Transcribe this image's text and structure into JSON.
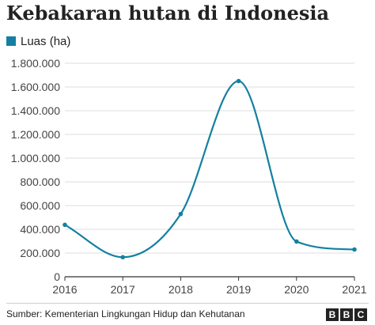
{
  "chart_data": {
    "type": "line",
    "title": "Kebakaran hutan di Indonesia",
    "categories": [
      "2016",
      "2017",
      "2018",
      "2019",
      "2020",
      "2021"
    ],
    "series": [
      {
        "name": "Luas (ha)",
        "values": [
          438000,
          165000,
          529000,
          1650000,
          297000,
          230000
        ]
      }
    ],
    "y_ticks": [
      0,
      200000,
      400000,
      600000,
      800000,
      1000000,
      1200000,
      1400000,
      1600000,
      1800000
    ],
    "y_tick_labels": [
      "0",
      "200.000",
      "400.000",
      "600.000",
      "800.000",
      "1.000.000",
      "1.200.000",
      "1.400.000",
      "1.600.000",
      "1.800.000"
    ],
    "ylim": [
      0,
      1800000
    ],
    "grid": true,
    "legend_position": "top-left",
    "line_color": "#1380a1"
  },
  "source": "Sumber: Kementerian Lingkungan Hidup dan Kehutanan",
  "logo_letters": [
    "B",
    "B",
    "C"
  ]
}
